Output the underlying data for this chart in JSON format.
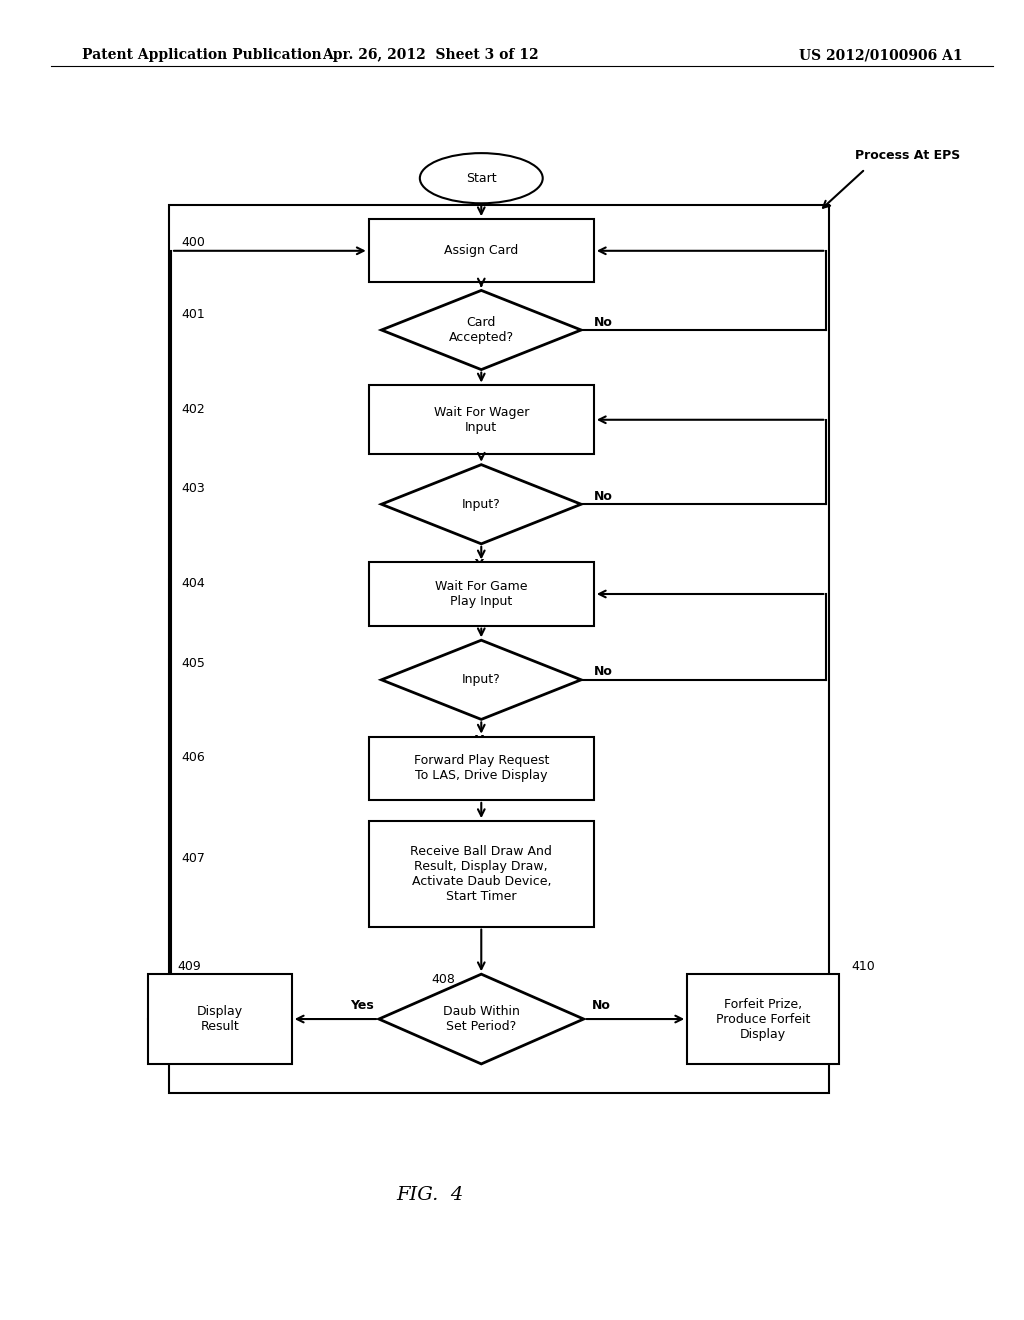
{
  "header_left": "Patent Application Publication",
  "header_mid": "Apr. 26, 2012  Sheet 3 of 12",
  "header_right": "US 2012/0100906 A1",
  "caption": "FIG.  4",
  "label_process": "Process At EPS",
  "bg_color": "#ffffff",
  "font_size": 9,
  "header_font_size": 10,
  "num_font_size": 9
}
